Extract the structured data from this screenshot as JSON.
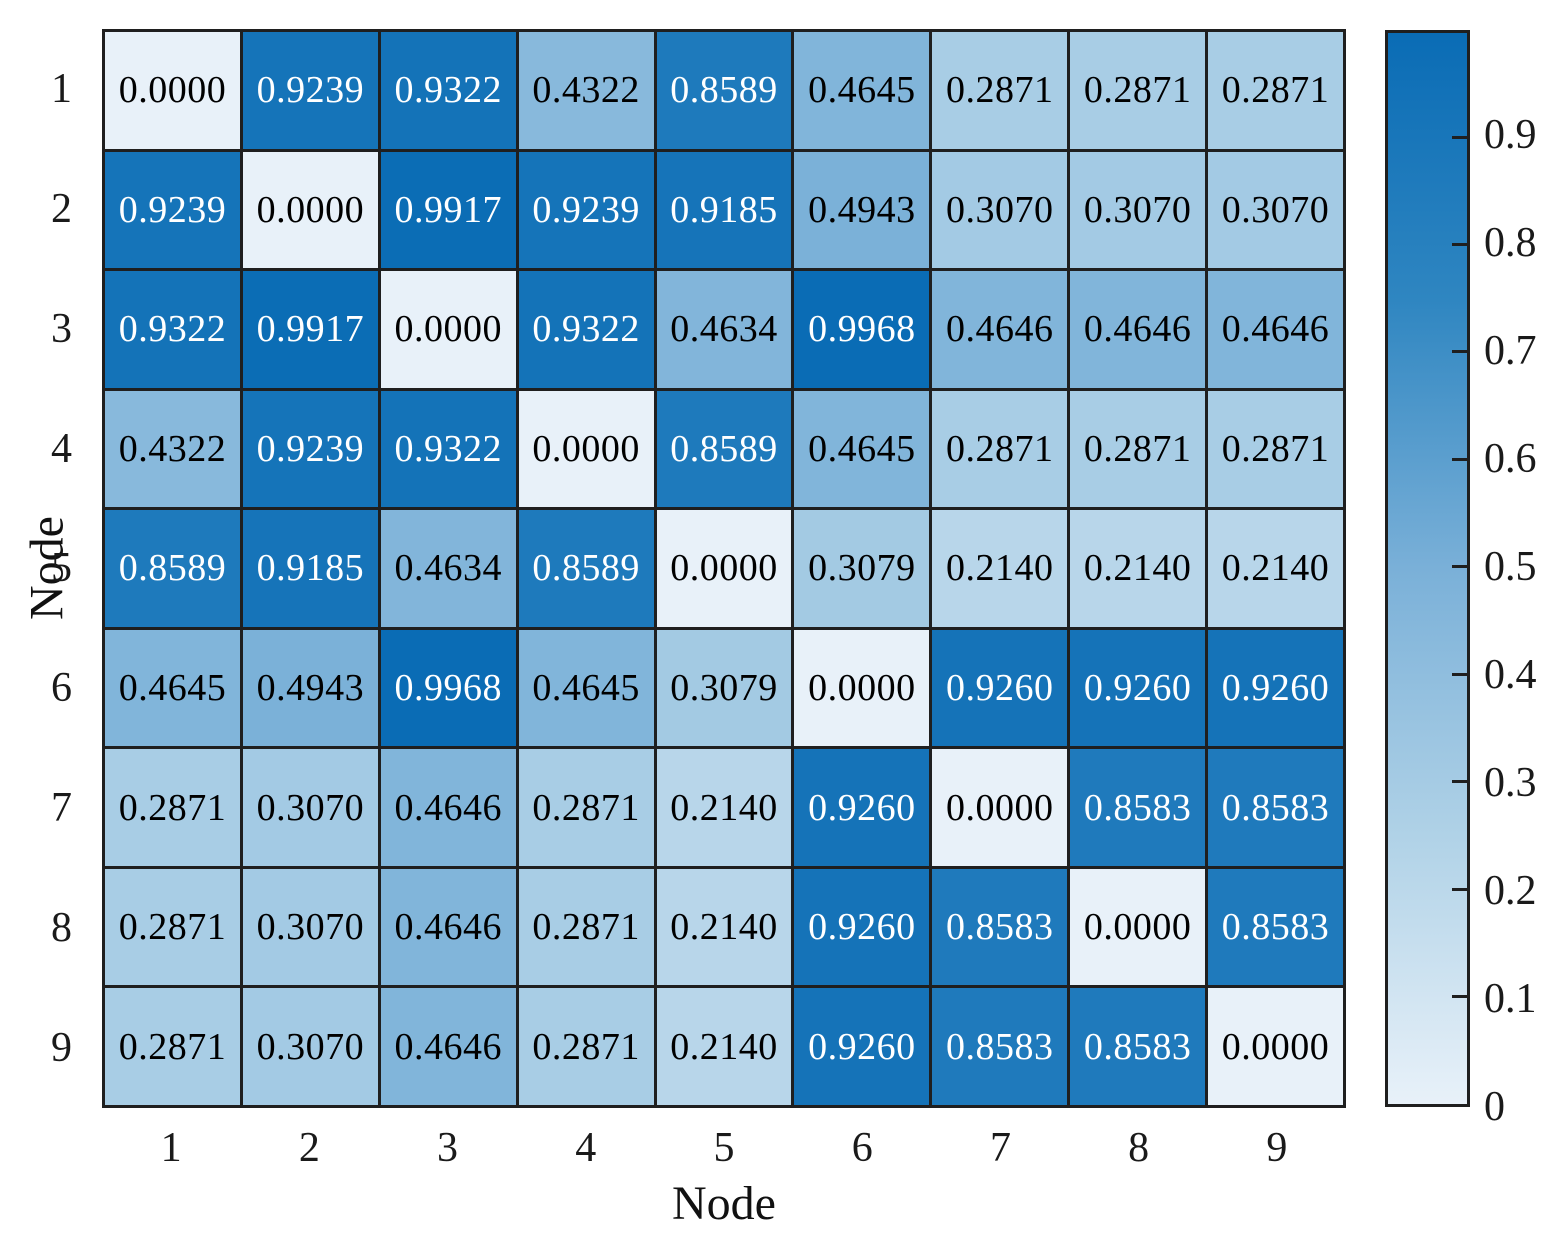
{
  "chart_data": {
    "type": "heatmap",
    "title": "",
    "xlabel": "Node",
    "ylabel": "Node",
    "x_categories": [
      "1",
      "2",
      "3",
      "4",
      "5",
      "6",
      "7",
      "8",
      "9"
    ],
    "y_categories": [
      "1",
      "2",
      "3",
      "4",
      "5",
      "6",
      "7",
      "8",
      "9"
    ],
    "value_decimals": 4,
    "matrix": [
      [
        0.0,
        0.9239,
        0.9322,
        0.4322,
        0.8589,
        0.4645,
        0.2871,
        0.2871,
        0.2871
      ],
      [
        0.9239,
        0.0,
        0.9917,
        0.9239,
        0.9185,
        0.4943,
        0.307,
        0.307,
        0.307
      ],
      [
        0.9322,
        0.9917,
        0.0,
        0.9322,
        0.4634,
        0.9968,
        0.4646,
        0.4646,
        0.4646
      ],
      [
        0.4322,
        0.9239,
        0.9322,
        0.0,
        0.8589,
        0.4645,
        0.2871,
        0.2871,
        0.2871
      ],
      [
        0.8589,
        0.9185,
        0.4634,
        0.8589,
        0.0,
        0.3079,
        0.214,
        0.214,
        0.214
      ],
      [
        0.4645,
        0.4943,
        0.9968,
        0.4645,
        0.3079,
        0.0,
        0.926,
        0.926,
        0.926
      ],
      [
        0.2871,
        0.307,
        0.4646,
        0.2871,
        0.214,
        0.926,
        0.0,
        0.8583,
        0.8583
      ],
      [
        0.2871,
        0.307,
        0.4646,
        0.2871,
        0.214,
        0.926,
        0.8583,
        0.0,
        0.8583
      ],
      [
        0.2871,
        0.307,
        0.4646,
        0.2871,
        0.214,
        0.926,
        0.8583,
        0.8583,
        0.0
      ]
    ],
    "color_axis": {
      "min": 0,
      "max": 0.9968,
      "ticks": [
        {
          "value": 0.0,
          "label": "0"
        },
        {
          "value": 0.1,
          "label": "0.1"
        },
        {
          "value": 0.2,
          "label": "0.2"
        },
        {
          "value": 0.3,
          "label": "0.3"
        },
        {
          "value": 0.4,
          "label": "0.4"
        },
        {
          "value": 0.5,
          "label": "0.5"
        },
        {
          "value": 0.6,
          "label": "0.6"
        },
        {
          "value": 0.7,
          "label": "0.7"
        },
        {
          "value": 0.8,
          "label": "0.8"
        },
        {
          "value": 0.9,
          "label": "0.9"
        }
      ],
      "legend_position": "right"
    },
    "colormap": {
      "name": "blues",
      "stops": [
        {
          "t": 0.0,
          "color": "#e8f1f9"
        },
        {
          "t": 0.25,
          "color": "#b0d2e7"
        },
        {
          "t": 0.5,
          "color": "#7ab0d8"
        },
        {
          "t": 0.75,
          "color": "#2f86c1"
        },
        {
          "t": 1.0,
          "color": "#0a6cb5"
        }
      ]
    },
    "text_color_threshold": 0.6,
    "colors": {
      "cell_text_dark": "#000000",
      "cell_text_light": "#ffffff",
      "grid_line": "#1f1f1f",
      "background": "#ffffff",
      "tick_text": "#1a1a1a"
    },
    "grid": true
  }
}
